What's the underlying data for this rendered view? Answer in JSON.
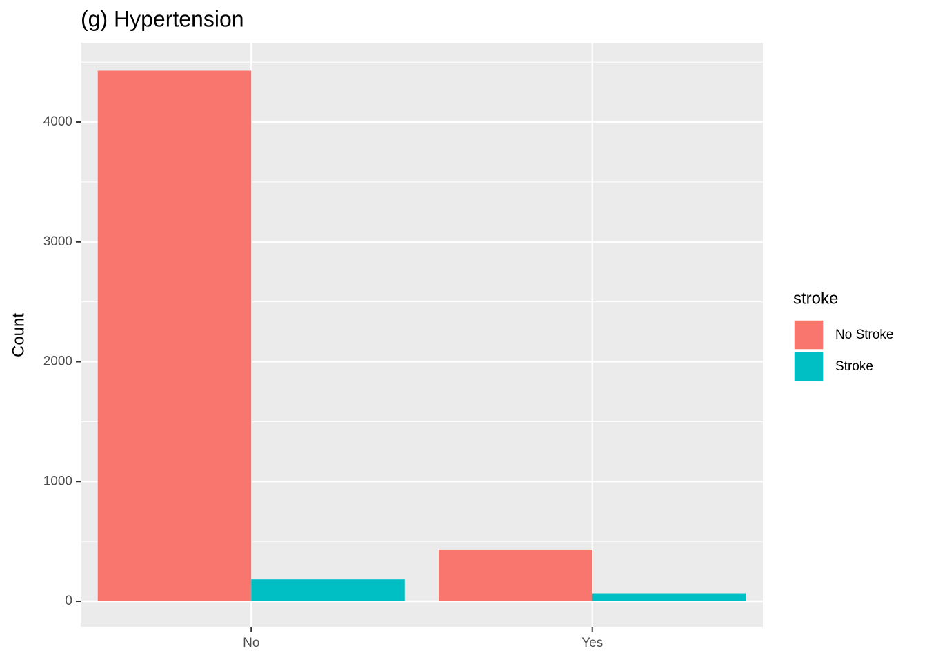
{
  "chart_data": {
    "type": "bar",
    "title": "(g) Hypertension",
    "y_label": "Count",
    "categories": [
      "No",
      "Yes"
    ],
    "series": [
      {
        "name": "No Stroke",
        "color": "#F8766D",
        "values": [
          4429,
          432
        ]
      },
      {
        "name": "Stroke",
        "color": "#00BFC4",
        "values": [
          183,
          66
        ]
      }
    ],
    "legend_title": "stroke",
    "ylim": [
      -213,
      4662
    ],
    "yticks": [
      0,
      1000,
      2000,
      3000,
      4000
    ],
    "grid": true
  }
}
